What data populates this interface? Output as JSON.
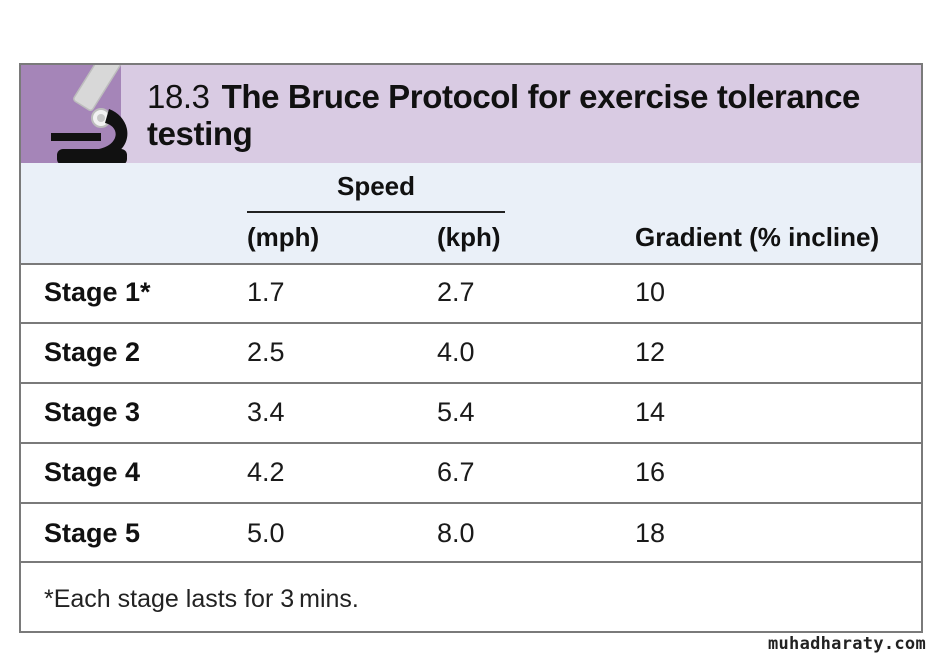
{
  "header": {
    "number": "18.3",
    "title": "The Bruce Protocol for exercise tolerance testing",
    "icon": "microscope-icon"
  },
  "table": {
    "group_header": "Speed",
    "columns": [
      "(mph)",
      "(kph)",
      "Gradient (% incline)"
    ],
    "rows": [
      {
        "stage": "Stage 1*",
        "mph": "1.7",
        "kph": "2.7",
        "gradient": "10"
      },
      {
        "stage": "Stage 2",
        "mph": "2.5",
        "kph": "4.0",
        "gradient": "12"
      },
      {
        "stage": "Stage 3",
        "mph": "3.4",
        "kph": "5.4",
        "gradient": "14"
      },
      {
        "stage": "Stage 4",
        "mph": "4.2",
        "kph": "6.7",
        "gradient": "16"
      },
      {
        "stage": "Stage 5",
        "mph": "5.0",
        "kph": "8.0",
        "gradient": "18"
      }
    ]
  },
  "footnote": "*Each stage lasts for 3 mins.",
  "watermark": "muhadharaty.com",
  "colors": {
    "header_bg": "#d9cbe3",
    "icon_strip_bg": "#a585b8",
    "column_header_bg": "#eaf0f8",
    "border": "#7a7a7a"
  }
}
